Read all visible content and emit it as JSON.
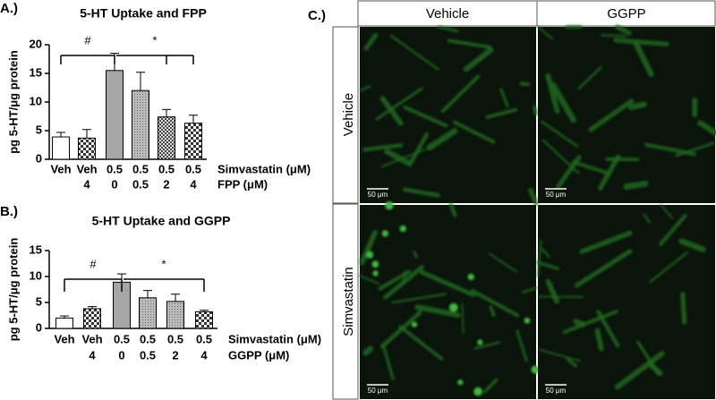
{
  "chart_data": [
    {
      "type": "bar",
      "panel_label": "A.)",
      "title": "5-HT Uptake and FPP",
      "y_label": "pg 5-HT/μg protein",
      "categories": [
        "Veh",
        "Veh",
        "0.5",
        "0.5",
        "0.5",
        "0.5"
      ],
      "categories2": [
        null,
        "4",
        "0",
        "0.5",
        "2",
        "4"
      ],
      "row_labels": [
        "Simvastatin (μM)",
        "FPP (μM)"
      ],
      "values": [
        3.9,
        3.7,
        15.5,
        12.0,
        7.4,
        6.3
      ],
      "errors": [
        0.8,
        1.5,
        3.0,
        3.2,
        1.3,
        1.4
      ],
      "colors": [
        "#ffffff",
        "url(#checker)",
        "#a6a6a6",
        "url(#dots)",
        "url(#checker-dark)",
        "url(#checker)"
      ],
      "annotations": [
        "#",
        "*"
      ],
      "ylim": [
        0,
        20
      ],
      "yticks": [
        0,
        5,
        10,
        15,
        20
      ]
    },
    {
      "type": "bar",
      "panel_label": "B.)",
      "title": "5-HT Uptake and GGPP",
      "y_label": "pg 5-HT/μg protein",
      "categories": [
        "Veh",
        "Veh",
        "0.5",
        "0.5",
        "0.5",
        "0.5"
      ],
      "categories2": [
        null,
        "4",
        "0",
        "0.5",
        "2",
        "4"
      ],
      "row_labels": [
        "Simvastatin (μM)",
        "GGPP (μM)"
      ],
      "values": [
        2.0,
        3.8,
        8.9,
        5.9,
        5.2,
        3.2
      ],
      "errors": [
        0.4,
        0.4,
        1.6,
        1.4,
        1.4,
        0.3
      ],
      "colors": [
        "#ffffff",
        "url(#checker)",
        "#a6a6a6",
        "url(#dots)",
        "url(#dots)",
        "url(#checker)"
      ],
      "annotations": [
        "#",
        "*"
      ],
      "ylim": [
        0,
        15
      ],
      "yticks": [
        0,
        5,
        10,
        15
      ]
    }
  ],
  "panel_c": {
    "label": "C.)",
    "columns": [
      "Vehicle",
      "GGPP"
    ],
    "rows": [
      "Vehicle",
      "Simvastatin"
    ],
    "scale_bars": [
      "50 μm",
      "50 μm",
      "50 μm",
      "50 μm"
    ]
  }
}
